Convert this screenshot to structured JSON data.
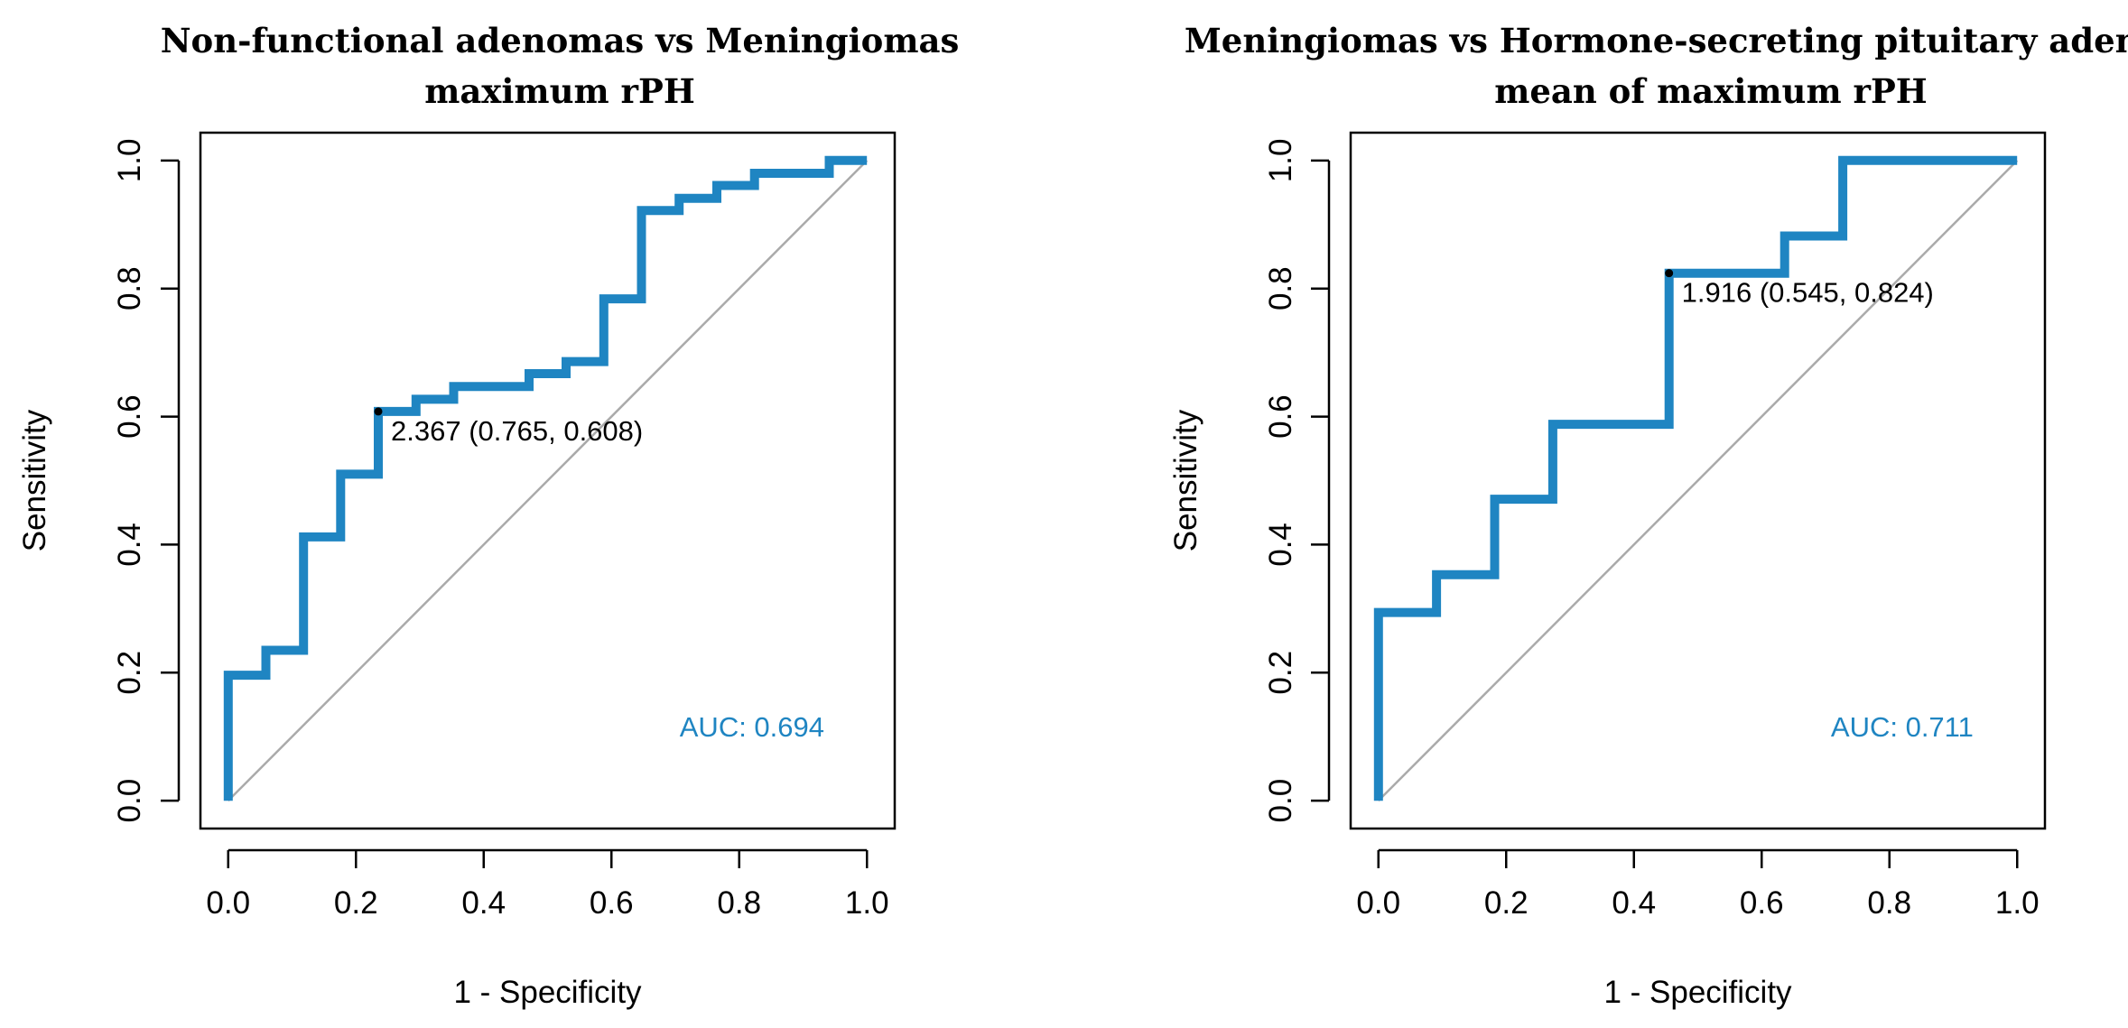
{
  "chart_data": [
    {
      "type": "line",
      "title": [
        "Non-functional adenomas vs Meningiomas",
        "maximum rPH"
      ],
      "xlabel": "1 - Specificity",
      "ylabel": "Sensitivity",
      "xlim": [
        0,
        1
      ],
      "ylim": [
        0,
        1
      ],
      "xticks": [
        "0.0",
        "0.2",
        "0.4",
        "0.6",
        "0.8",
        "1.0"
      ],
      "yticks": [
        "0.0",
        "0.2",
        "0.4",
        "0.6",
        "0.8",
        "1.0"
      ],
      "reference_line": {
        "name": "chance",
        "x": [
          0,
          1
        ],
        "y": [
          0,
          1
        ],
        "color": "#aaaaaa"
      },
      "series": [
        {
          "name": "ROC",
          "color": "#1f85c2",
          "x": [
            0,
            0,
            0.059,
            0.059,
            0.118,
            0.118,
            0.176,
            0.176,
            0.235,
            0.235,
            0.294,
            0.294,
            0.353,
            0.353,
            0.471,
            0.471,
            0.529,
            0.529,
            0.588,
            0.588,
            0.647,
            0.647,
            0.706,
            0.706,
            0.765,
            0.765,
            0.824,
            0.824,
            0.941,
            0.941,
            1.0
          ],
          "y": [
            0,
            0.196,
            0.196,
            0.235,
            0.235,
            0.412,
            0.412,
            0.51,
            0.51,
            0.608,
            0.608,
            0.627,
            0.627,
            0.647,
            0.647,
            0.667,
            0.667,
            0.686,
            0.686,
            0.784,
            0.784,
            0.922,
            0.922,
            0.941,
            0.941,
            0.961,
            0.961,
            0.98,
            0.98,
            1.0,
            1.0
          ]
        }
      ],
      "best_point": {
        "x": 0.235,
        "y": 0.608,
        "label": "2.367 (0.765, 0.608)"
      },
      "auc_label": "AUC: 0.694",
      "auc_color": "#1f85c2"
    },
    {
      "type": "line",
      "title": [
        "Meningiomas vs Hormone-secreting pituitary adenomas",
        "mean of maximum rPH"
      ],
      "xlabel": "1 - Specificity",
      "ylabel": "Sensitivity",
      "xlim": [
        0,
        1
      ],
      "ylim": [
        0,
        1
      ],
      "xticks": [
        "0.0",
        "0.2",
        "0.4",
        "0.6",
        "0.8",
        "1.0"
      ],
      "yticks": [
        "0.0",
        "0.2",
        "0.4",
        "0.6",
        "0.8",
        "1.0"
      ],
      "reference_line": {
        "name": "chance",
        "x": [
          0,
          1
        ],
        "y": [
          0,
          1
        ],
        "color": "#aaaaaa"
      },
      "series": [
        {
          "name": "ROC",
          "color": "#1f85c2",
          "x": [
            0,
            0,
            0.091,
            0.091,
            0.182,
            0.182,
            0.273,
            0.273,
            0.455,
            0.455,
            0.636,
            0.636,
            0.727,
            0.727,
            1.0
          ],
          "y": [
            0,
            0.294,
            0.294,
            0.353,
            0.353,
            0.471,
            0.471,
            0.588,
            0.588,
            0.824,
            0.824,
            0.882,
            0.882,
            1.0,
            1.0
          ]
        }
      ],
      "best_point": {
        "x": 0.455,
        "y": 0.824,
        "label": "1.916 (0.545, 0.824)"
      },
      "auc_label": "AUC: 0.711",
      "auc_color": "#1f85c2"
    }
  ]
}
